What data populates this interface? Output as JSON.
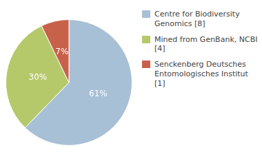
{
  "chart_data": {
    "type": "pie",
    "categories": [
      "Centre for Biodiversity\nGenomics [8]",
      "Mined from GenBank, NCBI [4]",
      "Senckenberg Deutsches\nEntomologisches Institut [1]"
    ],
    "values": [
      61,
      30,
      7
    ],
    "value_labels": [
      "61%",
      "30%",
      "7%"
    ],
    "colors": [
      "#a8c0d6",
      "#b5c96a",
      "#c8614a"
    ],
    "data_labels": true,
    "legend": "right"
  }
}
